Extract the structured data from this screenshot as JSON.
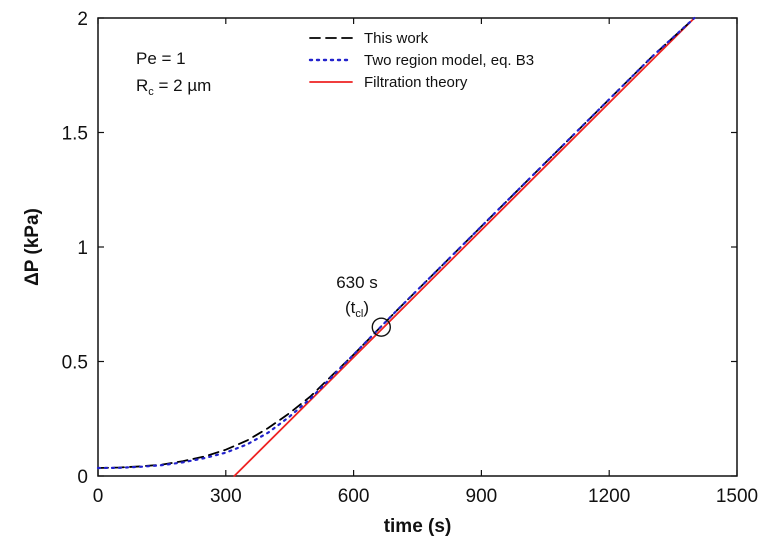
{
  "chart_data": {
    "type": "line",
    "xlabel": "time (s)",
    "ylabel": "ΔP (kPa)",
    "xlim": [
      0,
      1500
    ],
    "ylim": [
      0,
      2
    ],
    "xticks": [
      0,
      300,
      600,
      900,
      1200,
      1500
    ],
    "xtick_labels": [
      "0",
      "300",
      "600",
      "900",
      "1200",
      "1500"
    ],
    "yticks": [
      0,
      0.5,
      1,
      1.5,
      2
    ],
    "ytick_labels": [
      "0",
      "0.5",
      "1",
      "1.5",
      "2"
    ],
    "grid": false,
    "legend_position": "top-center",
    "series": [
      {
        "name": "This work",
        "style": "dashed",
        "color": "#000000",
        "x": [
          0,
          50,
          100,
          150,
          200,
          250,
          300,
          350,
          400,
          450,
          500,
          550,
          600,
          650,
          700,
          800,
          900,
          1000,
          1100,
          1200,
          1300,
          1400
        ],
        "y": [
          0.035,
          0.037,
          0.042,
          0.05,
          0.065,
          0.085,
          0.115,
          0.155,
          0.21,
          0.275,
          0.35,
          0.44,
          0.53,
          0.625,
          0.72,
          0.905,
          1.09,
          1.275,
          1.46,
          1.645,
          1.83,
          2.0
        ]
      },
      {
        "name": "Two region model, eq. B3",
        "style": "dotted",
        "color": "#2222cc",
        "x": [
          0,
          50,
          100,
          150,
          200,
          250,
          300,
          350,
          400,
          450,
          500,
          550,
          600,
          650,
          700,
          800,
          900,
          1000,
          1100,
          1200,
          1300,
          1400
        ],
        "y": [
          0.035,
          0.036,
          0.04,
          0.047,
          0.06,
          0.078,
          0.102,
          0.138,
          0.19,
          0.26,
          0.34,
          0.435,
          0.53,
          0.625,
          0.72,
          0.905,
          1.09,
          1.275,
          1.46,
          1.645,
          1.83,
          2.0
        ]
      },
      {
        "name": "Filtration theory",
        "style": "solid",
        "color": "#ee2222",
        "x": [
          320,
          1400
        ],
        "y": [
          0,
          2.0
        ]
      }
    ],
    "annotations": {
      "params": [
        {
          "main": "Pe = 1",
          "sub": "",
          "rest": ""
        },
        {
          "main": "R",
          "sub": "c",
          "rest": " = 2 µm"
        }
      ],
      "marker": {
        "x": 665,
        "y": 0.65,
        "label_main": "630 s",
        "label_paren_open": "(t",
        "label_sub": "cl",
        "label_paren_close": ")"
      }
    }
  }
}
